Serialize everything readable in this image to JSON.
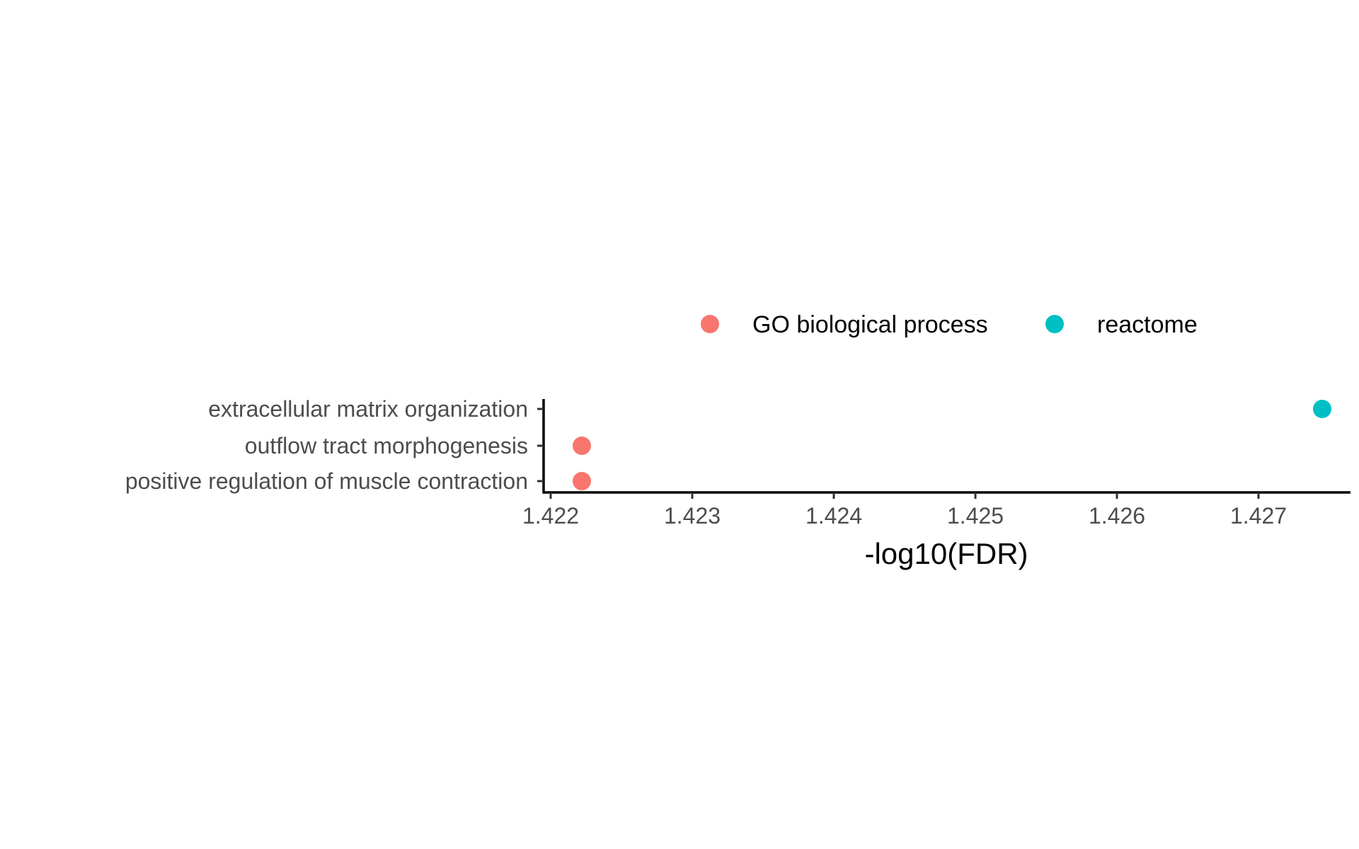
{
  "chart_data": {
    "type": "scatter",
    "title": "",
    "xlabel": "-log10(FDR)",
    "ylabel": "",
    "xlim": [
      1.42195,
      1.42765
    ],
    "x_ticks": [
      {
        "value": 1.422,
        "label": "1.422"
      },
      {
        "value": 1.423,
        "label": "1.423"
      },
      {
        "value": 1.424,
        "label": "1.424"
      },
      {
        "value": 1.425,
        "label": "1.425"
      },
      {
        "value": 1.426,
        "label": "1.426"
      },
      {
        "value": 1.427,
        "label": "1.427"
      }
    ],
    "categories": [
      "extracellular matrix organization",
      "outflow tract morphogenesis",
      "positive regulation of muscle contraction"
    ],
    "series": [
      {
        "name": "GO biological process",
        "color": "#F8766D",
        "points": [
          {
            "category": "outflow tract morphogenesis",
            "x": 1.42222
          },
          {
            "category": "positive regulation of muscle contraction",
            "x": 1.42222
          }
        ]
      },
      {
        "name": "reactome",
        "color": "#00BFC4",
        "points": [
          {
            "category": "extracellular matrix organization",
            "x": 1.42745
          }
        ]
      }
    ],
    "legend_position": "top",
    "grid": false
  }
}
